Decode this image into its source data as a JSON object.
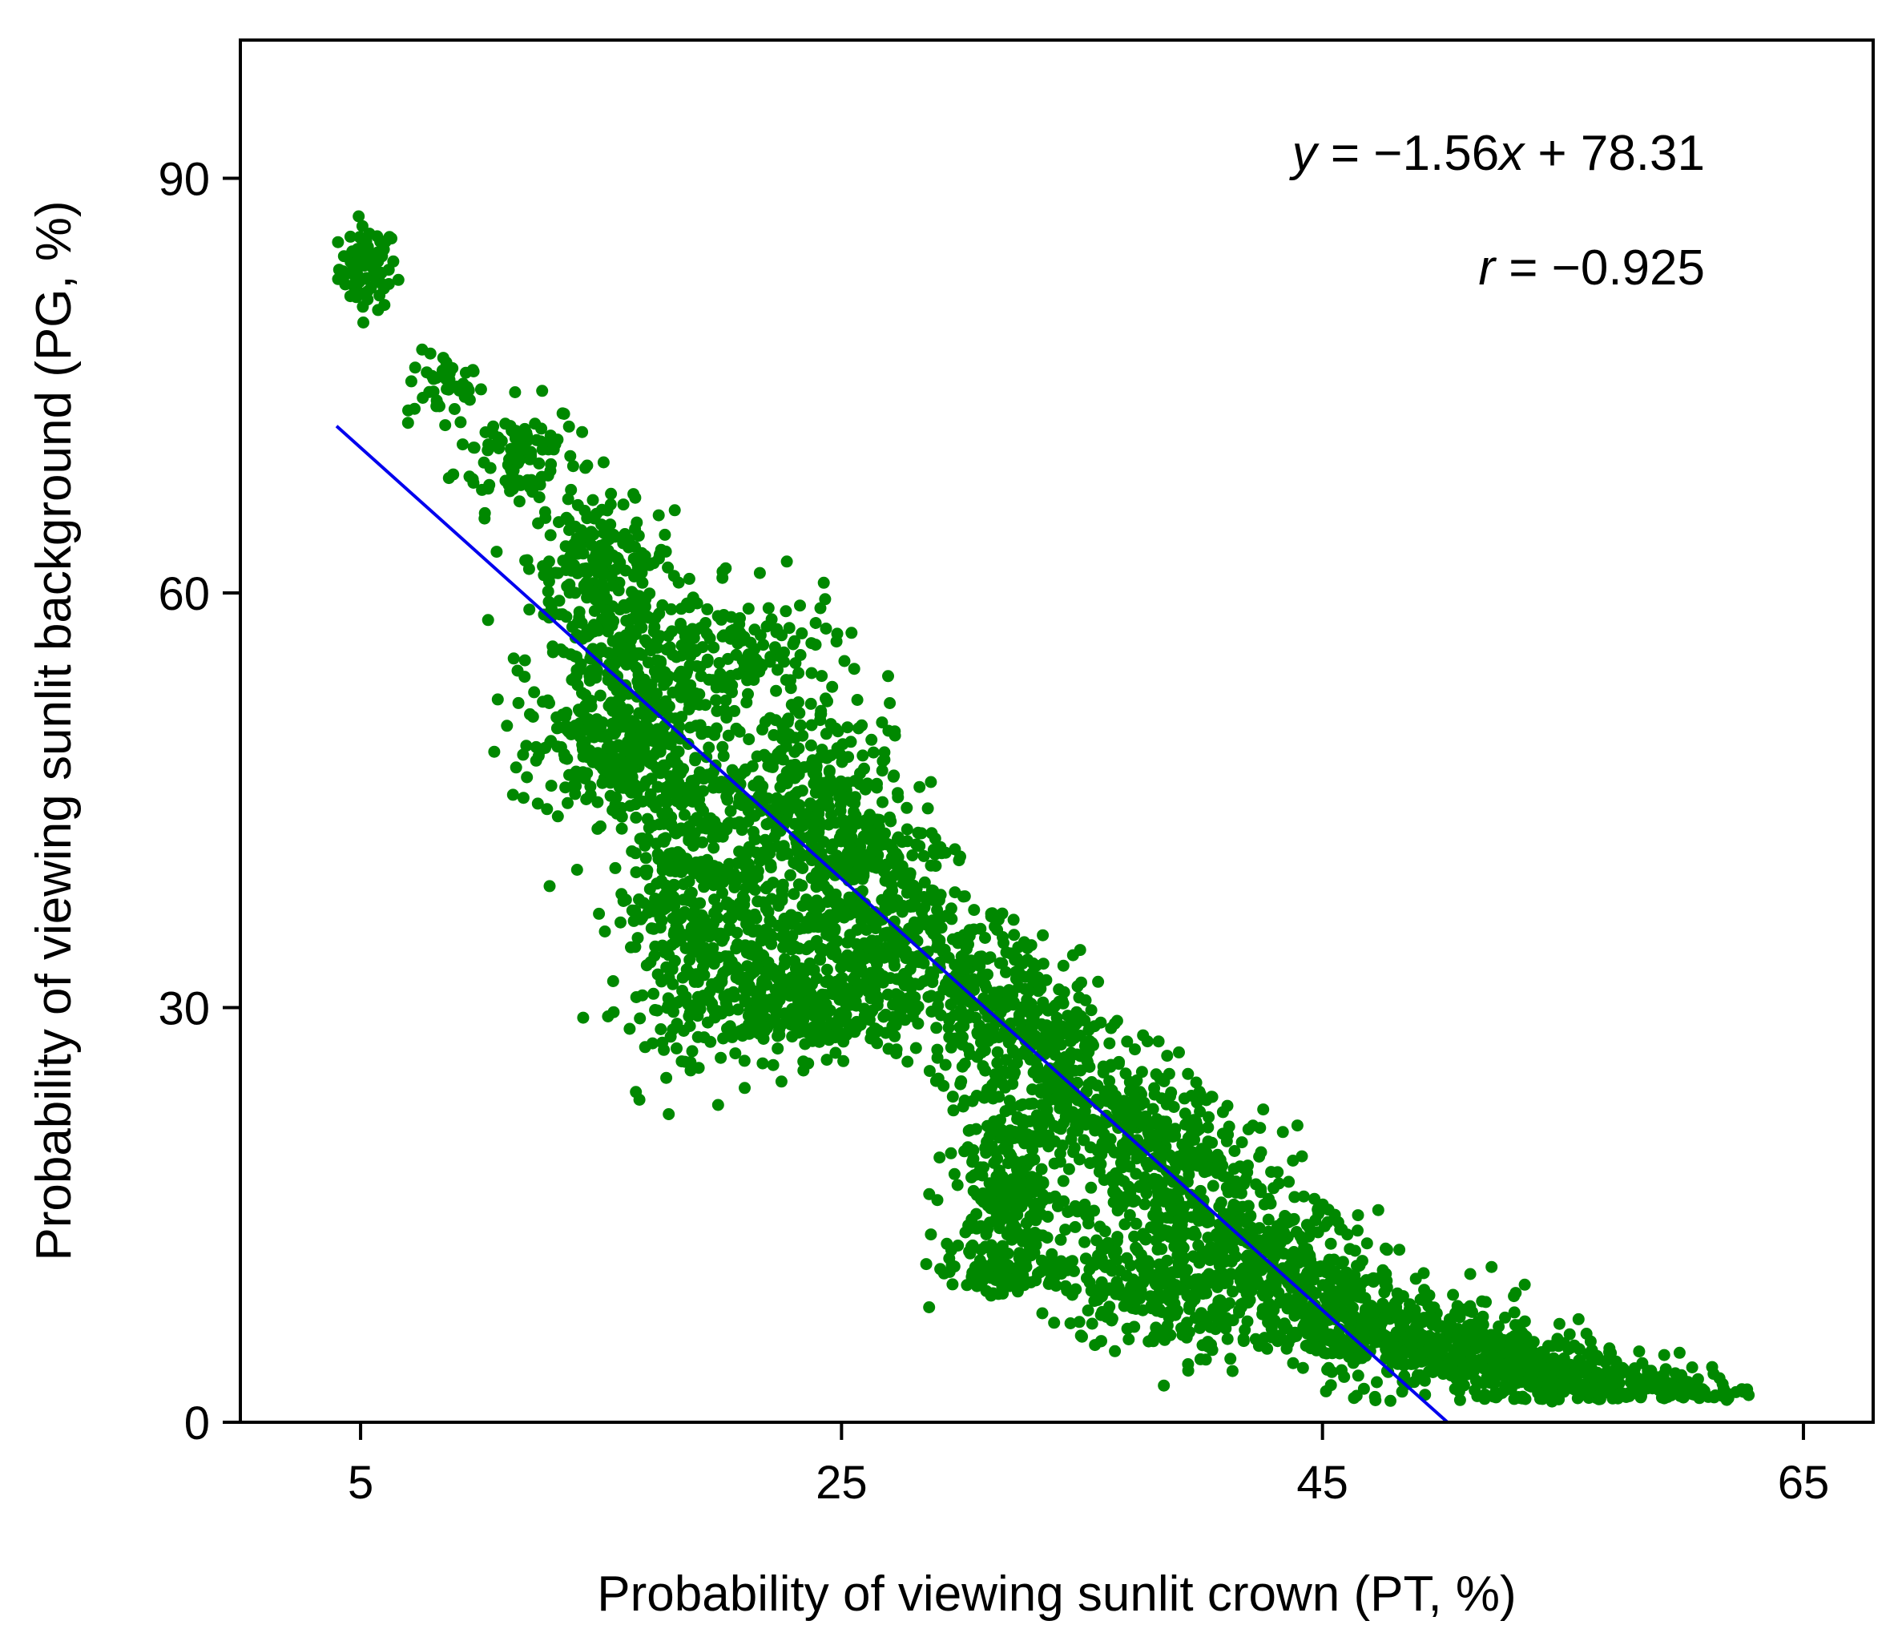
{
  "chart_data": {
    "type": "scatter",
    "title": "",
    "xlabel": "Probability of viewing sunlit crown (PT, %)",
    "ylabel": "Probability of viewing sunlit background (PG, %)",
    "xlim": [
      0,
      67.9
    ],
    "ylim": [
      0,
      100
    ],
    "xticks": [
      5,
      25,
      45,
      65
    ],
    "yticks": [
      0,
      30,
      60,
      90
    ],
    "xtick_labels": [
      "5",
      "25",
      "45",
      "65"
    ],
    "ytick_labels": [
      "0",
      "30",
      "60",
      "90"
    ],
    "grid": false,
    "legend": "none",
    "colors": {
      "points": "#008800",
      "fit_line": "#0000ee",
      "axes": "#000000"
    },
    "annotations": {
      "equation_y": "y",
      "equation_rest": " = −1.56",
      "equation_x": "x",
      "equation_tail": " + 78.31",
      "r_symbol": "r",
      "r_value": " = −0.925"
    },
    "fit_line": {
      "slope": -1.56,
      "intercept": 78.31,
      "x_range": [
        4,
        50.2
      ]
    },
    "clusters": [
      {
        "cx": 5.3,
        "cy": 83.5,
        "sx": 0.6,
        "sy": 1.5,
        "n": 80
      },
      {
        "cx": 8.5,
        "cy": 75,
        "sx": 0.8,
        "sy": 1.2,
        "n": 40
      },
      {
        "cx": 11.5,
        "cy": 70,
        "sx": 1.3,
        "sy": 2.0,
        "n": 110
      },
      {
        "cx": 15,
        "cy": 62.5,
        "sx": 1.5,
        "sy": 2.0,
        "n": 160
      },
      {
        "cx": 16,
        "cy": 55,
        "sx": 2.0,
        "sy": 3.0,
        "n": 280
      },
      {
        "cx": 15.8,
        "cy": 48,
        "sx": 1.8,
        "sy": 2.2,
        "n": 260
      },
      {
        "cx": 18.5,
        "cy": 38,
        "sx": 1.5,
        "sy": 5.0,
        "n": 320
      },
      {
        "cx": 21,
        "cy": 55,
        "sx": 2.0,
        "sy": 2.5,
        "n": 150
      },
      {
        "cx": 23,
        "cy": 47,
        "sx": 2.0,
        "sy": 2.5,
        "n": 200
      },
      {
        "cx": 25,
        "cy": 42,
        "sx": 2.2,
        "sy": 2.5,
        "n": 220
      },
      {
        "cx": 22.5,
        "cy": 35,
        "sx": 2.5,
        "sy": 4.0,
        "n": 260
      },
      {
        "cx": 23,
        "cy": 30,
        "sx": 2.5,
        "sy": 1.8,
        "n": 280
      },
      {
        "cx": 27,
        "cy": 37,
        "sx": 2.0,
        "sy": 2.5,
        "n": 180
      },
      {
        "cx": 30,
        "cy": 32,
        "sx": 2.0,
        "sy": 2.5,
        "n": 200
      },
      {
        "cx": 33,
        "cy": 27,
        "sx": 2.0,
        "sy": 2.5,
        "n": 230
      },
      {
        "cx": 32,
        "cy": 17,
        "sx": 1.2,
        "sy": 3.0,
        "n": 240
      },
      {
        "cx": 32,
        "cy": 11,
        "sx": 1.5,
        "sy": 1.0,
        "n": 100
      },
      {
        "cx": 36,
        "cy": 22,
        "sx": 2.0,
        "sy": 2.5,
        "n": 220
      },
      {
        "cx": 39,
        "cy": 18,
        "sx": 2.0,
        "sy": 2.5,
        "n": 240
      },
      {
        "cx": 38,
        "cy": 10,
        "sx": 2.0,
        "sy": 2.5,
        "n": 240
      },
      {
        "cx": 42,
        "cy": 12,
        "sx": 2.2,
        "sy": 2.5,
        "n": 250
      },
      {
        "cx": 45,
        "cy": 9,
        "sx": 2.0,
        "sy": 2.0,
        "n": 220
      },
      {
        "cx": 48,
        "cy": 6,
        "sx": 2.0,
        "sy": 1.8,
        "n": 220
      },
      {
        "cx": 51,
        "cy": 5,
        "sx": 2.0,
        "sy": 1.5,
        "n": 200
      },
      {
        "cx": 54,
        "cy": 3.5,
        "sx": 2.0,
        "sy": 1.2,
        "n": 180
      },
      {
        "cx": 57,
        "cy": 3,
        "sx": 1.8,
        "sy": 0.9,
        "n": 130
      },
      {
        "cx": 60,
        "cy": 2.3,
        "sx": 1.5,
        "sy": 0.6,
        "n": 60
      },
      {
        "cx": 62.5,
        "cy": 2.0,
        "sx": 0.5,
        "sy": 0.3,
        "n": 5
      }
    ]
  }
}
